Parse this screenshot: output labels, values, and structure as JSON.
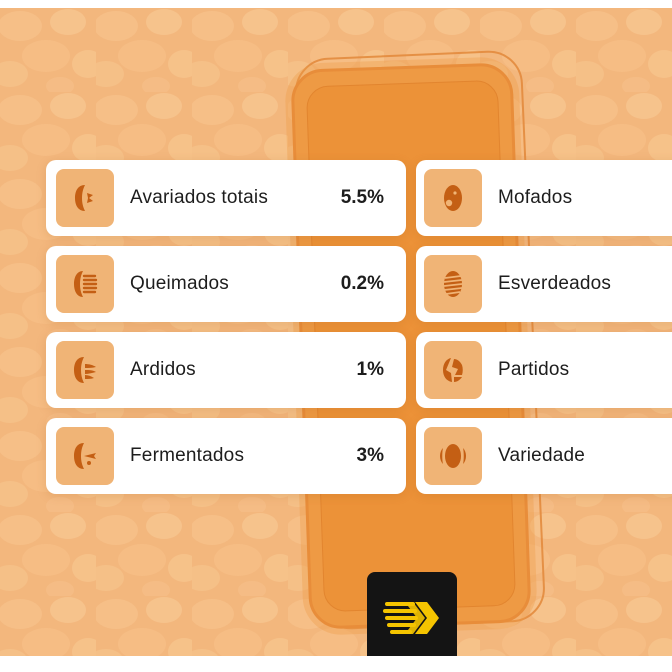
{
  "left_metrics": [
    {
      "label": "Avariados totais",
      "value": "5.5%",
      "icon": "bean-defect-icon"
    },
    {
      "label": "Queimados",
      "value": "0.2%",
      "icon": "bean-burnt-icon"
    },
    {
      "label": "Ardidos",
      "value": "1%",
      "icon": "bean-ardido-icon"
    },
    {
      "label": "Fermentados",
      "value": "3%",
      "icon": "bean-fermented-icon"
    }
  ],
  "right_metrics": [
    {
      "label": "Mofados",
      "icon": "bean-mold-icon"
    },
    {
      "label": "Esverdeados",
      "icon": "bean-green-icon"
    },
    {
      "label": "Partidos",
      "icon": "bean-broken-icon"
    },
    {
      "label": "Variedade",
      "icon": "bean-variety-icon"
    }
  ],
  "colors": {
    "background": "#f3b77d",
    "phone": "#ee9a44",
    "icon_bg": "#f0b476",
    "icon_fg": "#c45f14",
    "logo_bg": "#141414",
    "logo_fg": "#f5c400"
  },
  "logo": {
    "icon": "brand-logo-icon"
  }
}
